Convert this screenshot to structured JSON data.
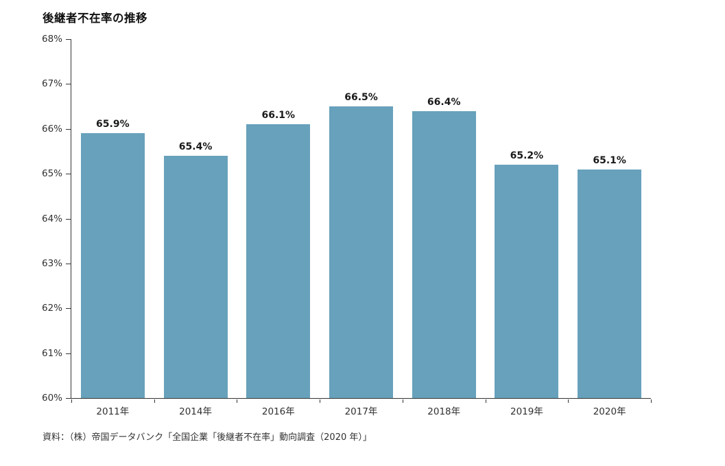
{
  "chart_data": {
    "type": "bar",
    "title": "後継者不在率の推移",
    "categories": [
      "2011年",
      "2014年",
      "2016年",
      "2017年",
      "2018年",
      "2019年",
      "2020年"
    ],
    "values": [
      65.9,
      65.4,
      66.1,
      66.5,
      66.4,
      65.2,
      65.1
    ],
    "value_labels": [
      "65.9%",
      "65.4%",
      "66.1%",
      "66.5%",
      "66.4%",
      "65.2%",
      "65.1%"
    ],
    "xlabel": "",
    "ylabel": "",
    "ylim": [
      60,
      68
    ],
    "y_tick_step": 1,
    "y_tick_labels": [
      "68%",
      "67%",
      "66%",
      "65%",
      "64%",
      "63%",
      "62%",
      "61%",
      "60%"
    ],
    "grid": false,
    "legend": false,
    "bar_color": "#68A1BB",
    "axis_color": "#333333",
    "source": "資料：（株）帝国データバンク「全国企業「後継者不在率」動向調査（2020 年）」"
  }
}
